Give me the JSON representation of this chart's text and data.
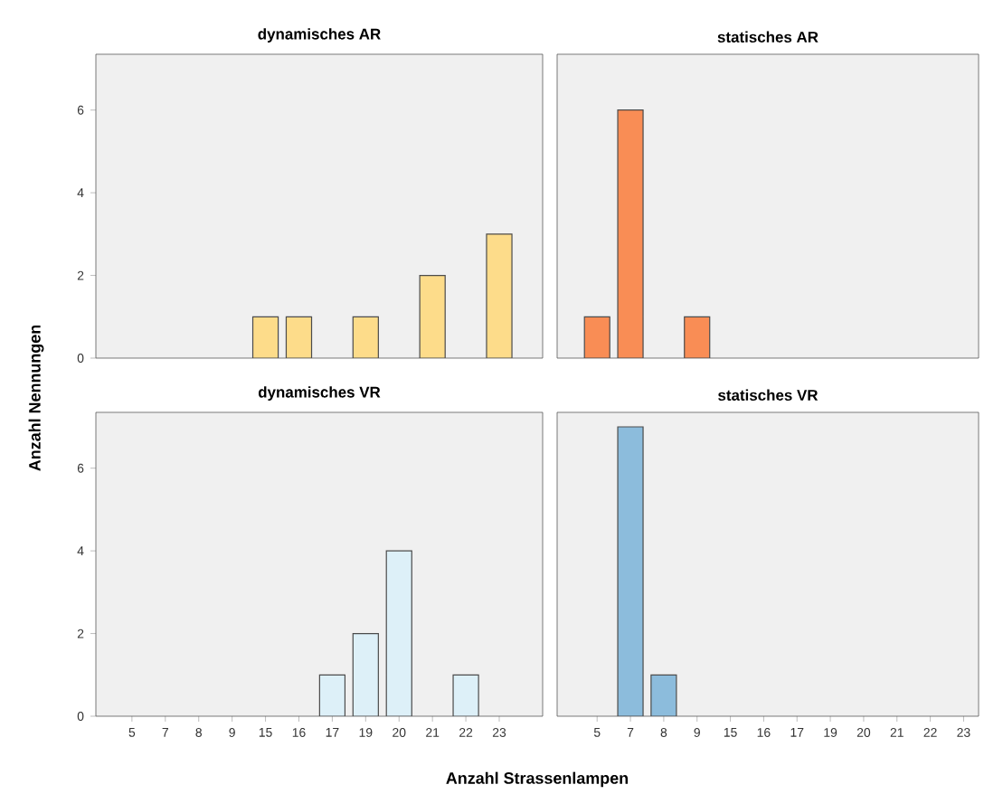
{
  "chart_data": [
    {
      "type": "bar",
      "title": "dynamisches AR",
      "ylabel": "Anzahl Nennungen",
      "categories": [
        "5",
        "7",
        "8",
        "9",
        "15",
        "16",
        "17",
        "19",
        "20",
        "21",
        "22",
        "23"
      ],
      "values": [
        null,
        null,
        null,
        null,
        1,
        1,
        null,
        1,
        null,
        2,
        null,
        3
      ],
      "color": "#fddc8a",
      "ylim": [
        0,
        7.35
      ],
      "yticks": [
        0,
        2,
        4,
        6
      ],
      "tick_labels": "y"
    },
    {
      "type": "bar",
      "title": "statisches AR",
      "categories": [
        "5",
        "7",
        "8",
        "9",
        "15",
        "16",
        "17",
        "19",
        "20",
        "21",
        "22",
        "23"
      ],
      "values": [
        1,
        6,
        null,
        1,
        null,
        null,
        null,
        null,
        null,
        null,
        null,
        null
      ],
      "color": "#f98d55",
      "ylim": [
        0,
        7.35
      ],
      "tick_labels": false
    },
    {
      "type": "bar",
      "title": "dynamisches VR",
      "xlabel": "Anzahl Strassenlampen",
      "categories": [
        "5",
        "7",
        "8",
        "9",
        "15",
        "16",
        "17",
        "19",
        "20",
        "21",
        "22",
        "23"
      ],
      "values": [
        null,
        null,
        null,
        null,
        null,
        null,
        1,
        2,
        4,
        null,
        1,
        null
      ],
      "color": "#ddf0f8",
      "ylim": [
        0,
        7.35
      ],
      "yticks": [
        0,
        2,
        4,
        6
      ]
    },
    {
      "type": "bar",
      "title": "statisches VR",
      "categories": [
        "5",
        "7",
        "8",
        "9",
        "15",
        "16",
        "17",
        "19",
        "20",
        "21",
        "22",
        "23"
      ],
      "values": [
        null,
        7,
        1,
        null,
        null,
        null,
        null,
        null,
        null,
        null,
        null,
        null
      ],
      "color": "#8cbcdc",
      "ylim": [
        0,
        7.35
      ],
      "tick_labels": "x"
    }
  ]
}
